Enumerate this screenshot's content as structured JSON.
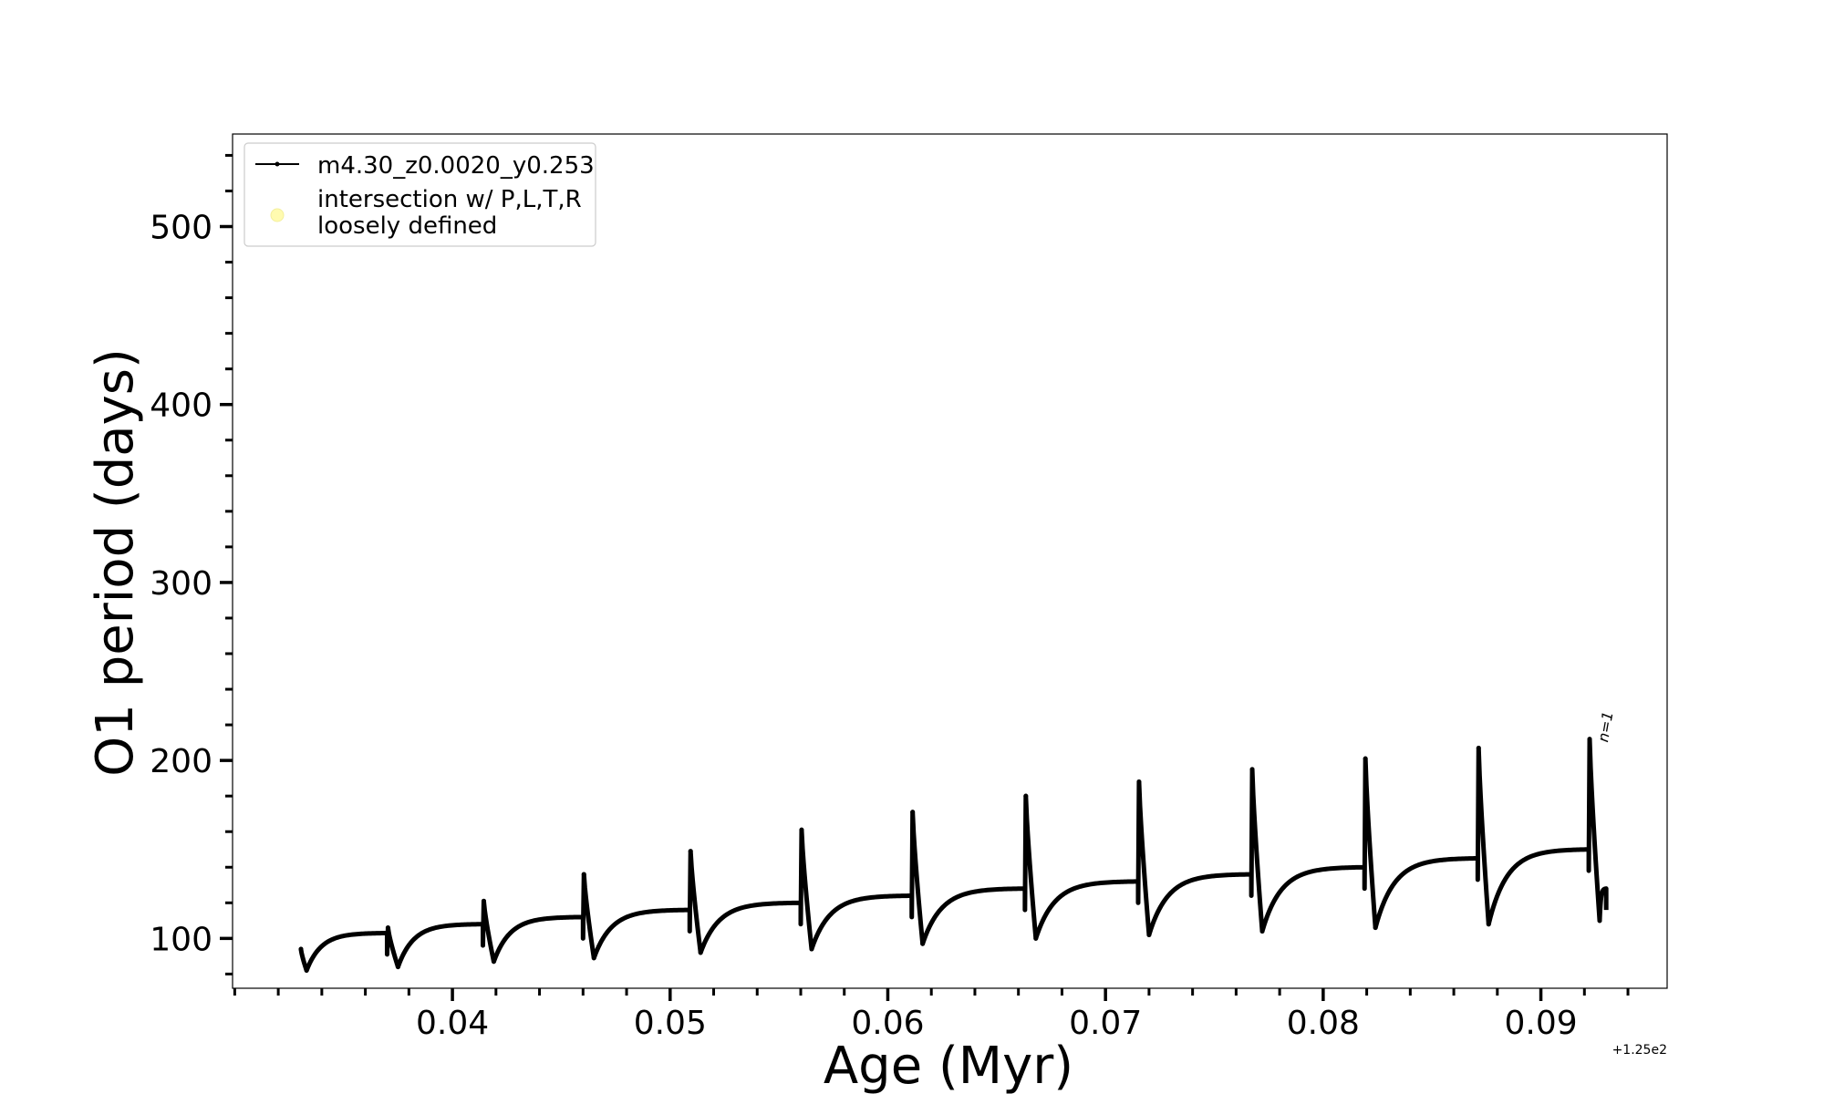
{
  "chart_data": {
    "type": "line",
    "xlabel": "Age (Myr)",
    "ylabel": "O1 period (days)",
    "x_offset_label": "+1.25e2",
    "xlim": [
      0.0299,
      0.0958
    ],
    "ylim": [
      72,
      552
    ],
    "x_ticks": [
      0.04,
      0.05,
      0.06,
      0.07,
      0.08,
      0.09
    ],
    "x_tick_labels": [
      "0.04",
      "0.05",
      "0.06",
      "0.07",
      "0.08",
      "0.09"
    ],
    "y_ticks": [
      100,
      200,
      300,
      400,
      500
    ],
    "y_tick_labels": [
      "100",
      "200",
      "300",
      "400",
      "500"
    ],
    "grid": false,
    "legend_position": "top-left",
    "legend": [
      {
        "label": "m4.30_z0.0020_y0.253",
        "marker": "line-dot",
        "color": "#000000"
      },
      {
        "label": "intersection w/ P,L,T,R\nloosely defined",
        "marker": "circle",
        "color": "#fffbb0"
      }
    ],
    "annotations": [
      {
        "text": "n=1",
        "x": 0.0924,
        "y": 212
      }
    ],
    "series": [
      {
        "name": "m4.30_z0.0020_y0.253",
        "color": "#000000",
        "cycles": [
          {
            "x_start": 0.033,
            "peak": 94,
            "x_min": 0.0333,
            "min": 82,
            "x_end": 0.037,
            "plateau": 103
          },
          {
            "x_start": 0.037,
            "peak": 106,
            "x_min": 0.0375,
            "min": 84,
            "x_end": 0.0414,
            "plateau": 108
          },
          {
            "x_start": 0.0414,
            "peak": 121,
            "x_min": 0.0419,
            "min": 87,
            "x_end": 0.046,
            "plateau": 112
          },
          {
            "x_start": 0.046,
            "peak": 136,
            "x_min": 0.0465,
            "min": 89,
            "x_end": 0.0509,
            "plateau": 116
          },
          {
            "x_start": 0.0509,
            "peak": 149,
            "x_min": 0.0514,
            "min": 92,
            "x_end": 0.056,
            "plateau": 120
          },
          {
            "x_start": 0.056,
            "peak": 161,
            "x_min": 0.0565,
            "min": 94,
            "x_end": 0.0611,
            "plateau": 124
          },
          {
            "x_start": 0.0611,
            "peak": 171,
            "x_min": 0.0616,
            "min": 97,
            "x_end": 0.0663,
            "plateau": 128
          },
          {
            "x_start": 0.0663,
            "peak": 180,
            "x_min": 0.0668,
            "min": 100,
            "x_end": 0.0715,
            "plateau": 132
          },
          {
            "x_start": 0.0715,
            "peak": 188,
            "x_min": 0.072,
            "min": 102,
            "x_end": 0.0767,
            "plateau": 136
          },
          {
            "x_start": 0.0767,
            "peak": 195,
            "x_min": 0.0772,
            "min": 104,
            "x_end": 0.0819,
            "plateau": 140
          },
          {
            "x_start": 0.0819,
            "peak": 201,
            "x_min": 0.0824,
            "min": 106,
            "x_end": 0.0871,
            "plateau": 145
          },
          {
            "x_start": 0.0871,
            "peak": 207,
            "x_min": 0.0876,
            "min": 108,
            "x_end": 0.0922,
            "plateau": 150
          },
          {
            "x_start": 0.0922,
            "peak": 212,
            "x_min": 0.0927,
            "min": 110,
            "x_end": 0.093,
            "plateau": 128
          }
        ]
      }
    ]
  }
}
